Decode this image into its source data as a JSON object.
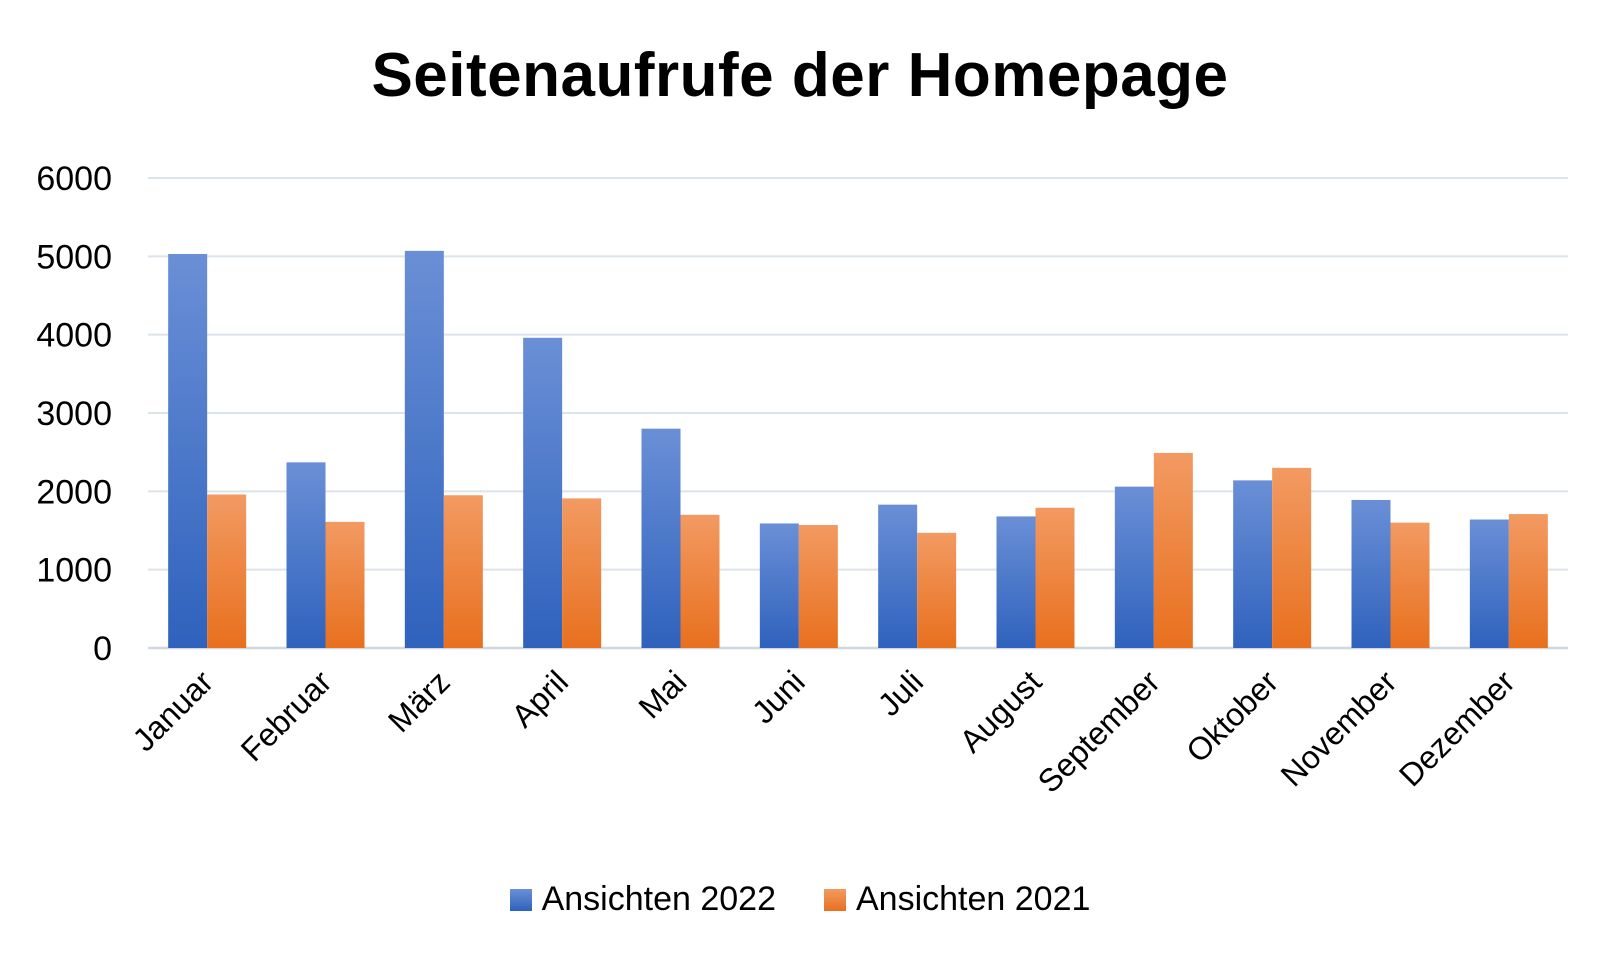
{
  "chart_data": {
    "type": "bar",
    "title": "Seitenaufrufe der Homepage",
    "xlabel": "",
    "ylabel": "",
    "categories": [
      "Januar",
      "Februar",
      "März",
      "April",
      "Mai",
      "Juni",
      "Juli",
      "August",
      "September",
      "Oktober",
      "November",
      "Dezember"
    ],
    "series": [
      {
        "name": "Ansichten 2022",
        "color": "#4472C4",
        "values": [
          5030,
          2370,
          5070,
          3960,
          2800,
          1590,
          1830,
          1680,
          2060,
          2140,
          1890,
          1640
        ]
      },
      {
        "name": "Ansichten 2021",
        "color": "#ED7D31",
        "values": [
          1960,
          1610,
          1950,
          1910,
          1700,
          1570,
          1470,
          1790,
          2490,
          2300,
          1600,
          1710
        ]
      }
    ],
    "ylim": [
      0,
      6000
    ],
    "yticks": [
      0,
      1000,
      2000,
      3000,
      4000,
      5000,
      6000
    ],
    "grid": true,
    "legend_position": "bottom"
  }
}
